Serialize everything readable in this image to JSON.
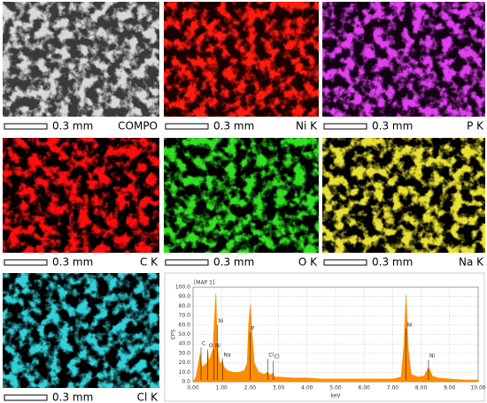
{
  "panels": [
    {
      "label": "COMPO",
      "scale": "0.3 mm",
      "color": "#d8d8d8",
      "background": "#3a3a3a"
    },
    {
      "label": "Ni K",
      "scale": "0.3 mm",
      "color": "#ff1a10",
      "background": "#1a0000"
    },
    {
      "label": "P K",
      "scale": "0.3 mm",
      "color": "#e040f0",
      "background": "#140014"
    },
    {
      "label": "C K",
      "scale": "0.3 mm",
      "color": "#ff1010",
      "background": "#000000"
    },
    {
      "label": "O K",
      "scale": "0.3 mm",
      "color": "#30e020",
      "background": "#000000"
    },
    {
      "label": "Na K",
      "scale": "0.3 mm",
      "color": "#e8e030",
      "background": "#000000"
    },
    {
      "label": "Cl K",
      "scale": "0.3 mm",
      "color": "#30d0d8",
      "background": "#000000"
    }
  ],
  "chart_data": {
    "type": "area",
    "title": "[MAP 1]",
    "y_label": "CPS",
    "x_label": "keV",
    "color": "#ff8c00",
    "grid": true,
    "x": [
      0,
      0.1,
      0.2,
      0.25,
      0.28,
      0.32,
      0.4,
      0.5,
      0.52,
      0.55,
      0.6,
      0.7,
      0.74,
      0.8,
      0.85,
      0.9,
      0.95,
      1.0,
      1.04,
      1.1,
      1.2,
      1.4,
      1.6,
      1.8,
      1.9,
      1.95,
      2.01,
      2.07,
      2.15,
      2.3,
      2.5,
      2.62,
      2.7,
      2.8,
      2.83,
      2.9,
      3.0,
      3.5,
      4.0,
      4.5,
      5.0,
      5.5,
      6.0,
      6.5,
      7.0,
      7.3,
      7.4,
      7.47,
      7.55,
      7.65,
      7.9,
      8.1,
      8.26,
      8.4,
      8.6,
      9.0,
      9.5,
      10.0
    ],
    "values": [
      0,
      5,
      20,
      30,
      22,
      15,
      18,
      20,
      32,
      22,
      25,
      35,
      60,
      93,
      40,
      25,
      18,
      22,
      20,
      15,
      12,
      10,
      10,
      12,
      20,
      60,
      82,
      50,
      20,
      10,
      8,
      10,
      7,
      9,
      6,
      5,
      5,
      4,
      4,
      3,
      3,
      3,
      3,
      3,
      3,
      5,
      40,
      92,
      35,
      8,
      5,
      6,
      15,
      6,
      4,
      3,
      2,
      2
    ],
    "annotations": [
      {
        "text": "C",
        "energy": 0.28
      },
      {
        "text": "O",
        "energy": 0.52
      },
      {
        "text": "Ni",
        "energy": 0.74
      },
      {
        "text": "Ni",
        "energy": 0.85
      },
      {
        "text": "Na",
        "energy": 1.04
      },
      {
        "text": "P",
        "energy": 2.01
      },
      {
        "text": "Cl",
        "energy": 2.62
      },
      {
        "text": "Cl",
        "energy": 2.82
      },
      {
        "text": "Ni",
        "energy": 7.47
      },
      {
        "text": "Ni",
        "energy": 8.26
      }
    ],
    "xlim": [
      0,
      10
    ],
    "ylim": [
      0,
      100
    ],
    "xticks": [
      {
        "value": 0,
        "label": "0.00"
      },
      {
        "value": 1,
        "label": "1.00"
      },
      {
        "value": 2,
        "label": "2.00"
      },
      {
        "value": 3,
        "label": "3.00"
      },
      {
        "value": 4,
        "label": "4.00"
      },
      {
        "value": 5,
        "label": "5.00"
      },
      {
        "value": 6,
        "label": "6.00"
      },
      {
        "value": 7,
        "label": "7.00"
      },
      {
        "value": 8,
        "label": "8.00"
      },
      {
        "value": 9,
        "label": "9.00"
      },
      {
        "value": 10,
        "label": "10.00"
      }
    ],
    "yticks": [
      {
        "value": 0,
        "label": "0.0"
      },
      {
        "value": 10,
        "label": "10.0"
      },
      {
        "value": 20,
        "label": "20.0"
      },
      {
        "value": 30,
        "label": "30.0"
      },
      {
        "value": 40,
        "label": "40.0"
      },
      {
        "value": 50,
        "label": "50.0"
      },
      {
        "value": 60,
        "label": "60.0"
      },
      {
        "value": 70,
        "label": "70.0"
      },
      {
        "value": 80,
        "label": "80.0"
      },
      {
        "value": 90,
        "label": "90.0"
      },
      {
        "value": 100,
        "label": "100.0"
      }
    ]
  }
}
